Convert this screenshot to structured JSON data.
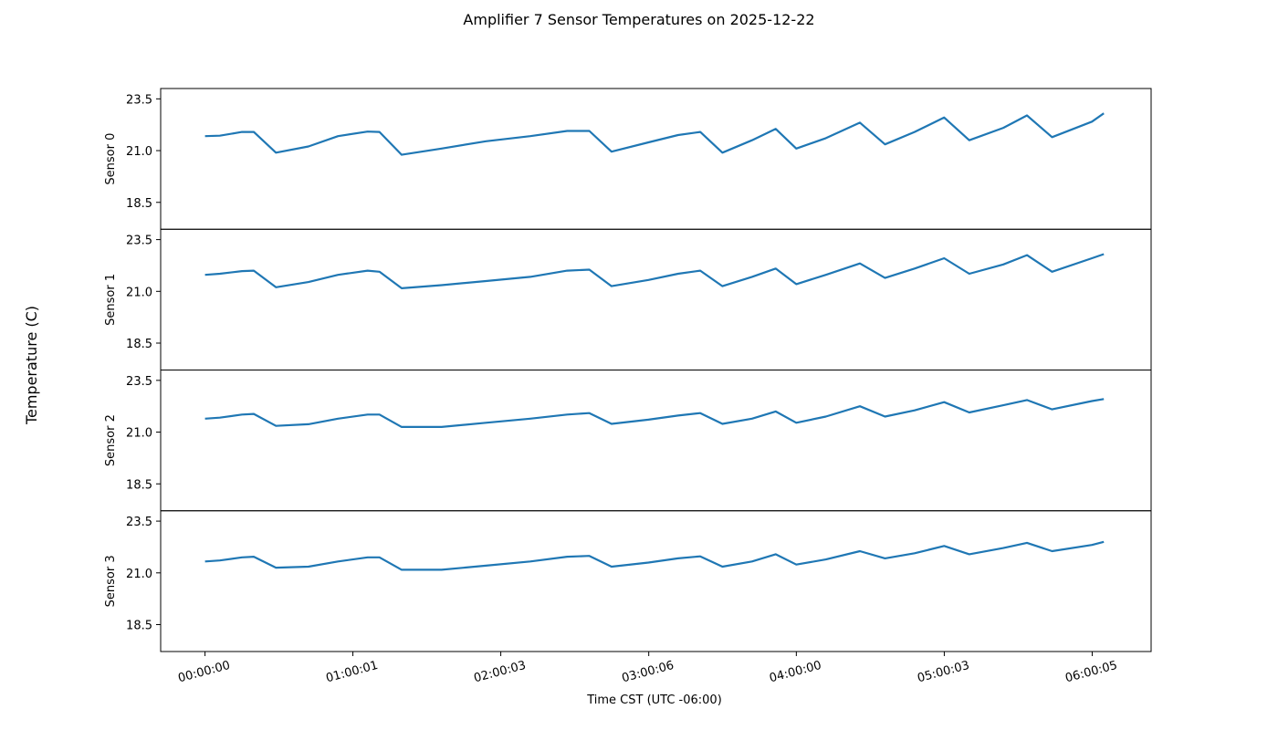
{
  "chart_data": {
    "type": "line",
    "title": "Amplifier 7 Sensor Temperatures on 2025-12-22",
    "xlabel": "Time CST (UTC -06:00)",
    "ylabel": "Temperature (C)",
    "xlim": [
      -0.3,
      6.4
    ],
    "x_ticks": [
      0,
      1.0003,
      2.0008,
      3.0017,
      4.0,
      5.0008,
      6.0014
    ],
    "x_tick_labels": [
      "00:00:00",
      "01:00:01",
      "02:00:03",
      "03:00:06",
      "04:00:00",
      "05:00:03",
      "06:00:05"
    ],
    "ylim": [
      17.2,
      24.0
    ],
    "y_ticks": [
      18.5,
      21.0,
      23.5
    ],
    "y_tick_labels": [
      "18.5",
      "21.0",
      "23.5"
    ],
    "line_color": "#1f77b4",
    "series": [
      {
        "name": "Sensor 0",
        "x": [
          0,
          0.1,
          0.25,
          0.33,
          0.48,
          0.7,
          0.9,
          1.1,
          1.18,
          1.33,
          1.6,
          1.9,
          2.2,
          2.45,
          2.6,
          2.75,
          3.0,
          3.2,
          3.35,
          3.5,
          3.7,
          3.86,
          4.0,
          4.2,
          4.43,
          4.6,
          4.8,
          5.0,
          5.17,
          5.4,
          5.56,
          5.73,
          6.0,
          6.08
        ],
        "values": [
          21.7,
          21.72,
          21.9,
          21.9,
          20.9,
          21.2,
          21.7,
          21.92,
          21.9,
          20.8,
          21.1,
          21.45,
          21.7,
          21.95,
          21.95,
          20.95,
          21.4,
          21.75,
          21.9,
          20.9,
          21.5,
          22.05,
          21.1,
          21.6,
          22.35,
          21.3,
          21.9,
          22.6,
          21.5,
          22.1,
          22.7,
          21.65,
          22.4,
          22.8
        ]
      },
      {
        "name": "Sensor 1",
        "x": [
          0,
          0.1,
          0.25,
          0.33,
          0.48,
          0.7,
          0.9,
          1.1,
          1.18,
          1.33,
          1.6,
          1.9,
          2.2,
          2.45,
          2.6,
          2.75,
          3.0,
          3.2,
          3.35,
          3.5,
          3.7,
          3.86,
          4.0,
          4.2,
          4.43,
          4.6,
          4.8,
          5.0,
          5.17,
          5.4,
          5.56,
          5.73,
          6.0,
          6.08
        ],
        "values": [
          21.8,
          21.85,
          21.98,
          22.0,
          21.2,
          21.45,
          21.8,
          22.0,
          21.95,
          21.15,
          21.3,
          21.5,
          21.7,
          22.0,
          22.05,
          21.25,
          21.55,
          21.85,
          22.0,
          21.25,
          21.7,
          22.1,
          21.35,
          21.8,
          22.35,
          21.65,
          22.1,
          22.6,
          21.85,
          22.3,
          22.75,
          21.95,
          22.6,
          22.8
        ]
      },
      {
        "name": "Sensor 2",
        "x": [
          0,
          0.1,
          0.25,
          0.33,
          0.48,
          0.7,
          0.9,
          1.1,
          1.18,
          1.33,
          1.6,
          1.9,
          2.2,
          2.45,
          2.6,
          2.75,
          3.0,
          3.2,
          3.35,
          3.5,
          3.7,
          3.86,
          4.0,
          4.2,
          4.43,
          4.6,
          4.8,
          5.0,
          5.17,
          5.4,
          5.56,
          5.73,
          6.0,
          6.08
        ],
        "values": [
          21.65,
          21.7,
          21.85,
          21.88,
          21.3,
          21.38,
          21.65,
          21.85,
          21.85,
          21.25,
          21.25,
          21.45,
          21.65,
          21.85,
          21.92,
          21.4,
          21.6,
          21.8,
          21.92,
          21.4,
          21.65,
          22.0,
          21.45,
          21.75,
          22.25,
          21.75,
          22.05,
          22.45,
          21.95,
          22.3,
          22.55,
          22.1,
          22.5,
          22.6
        ]
      },
      {
        "name": "Sensor 3",
        "x": [
          0,
          0.1,
          0.25,
          0.33,
          0.48,
          0.7,
          0.9,
          1.1,
          1.18,
          1.33,
          1.6,
          1.9,
          2.2,
          2.45,
          2.6,
          2.75,
          3.0,
          3.2,
          3.35,
          3.5,
          3.7,
          3.86,
          4.0,
          4.2,
          4.43,
          4.6,
          4.8,
          5.0,
          5.17,
          5.4,
          5.56,
          5.73,
          6.0,
          6.08
        ],
        "values": [
          21.55,
          21.6,
          21.75,
          21.78,
          21.25,
          21.3,
          21.55,
          21.75,
          21.75,
          21.15,
          21.15,
          21.35,
          21.55,
          21.78,
          21.82,
          21.3,
          21.5,
          21.7,
          21.8,
          21.3,
          21.55,
          21.9,
          21.4,
          21.65,
          22.05,
          21.7,
          21.95,
          22.3,
          21.9,
          22.2,
          22.45,
          22.05,
          22.35,
          22.5
        ]
      }
    ]
  }
}
